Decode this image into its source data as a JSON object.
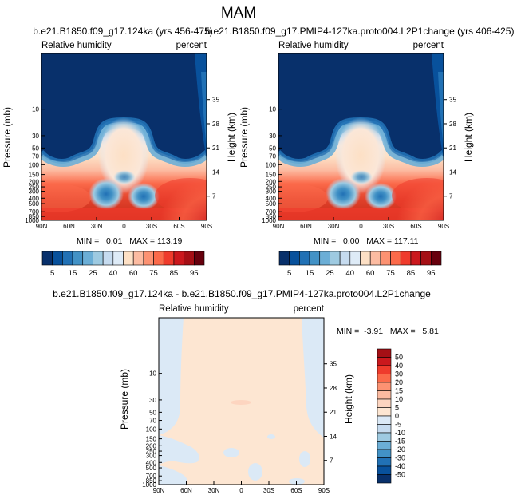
{
  "figure_title": "MAM",
  "chart_data": [
    {
      "type": "filled-contour",
      "title": "b.e21.B1850.f09_g17.124ka (yrs 456-475)",
      "left_string": "Relative humidity",
      "right_string": "percent",
      "xlabel": "",
      "ylabel": "Pressure (mb)",
      "ylabel_right": "Height (km)",
      "x_ticks": [
        "90N",
        "60N",
        "30N",
        "0",
        "30S",
        "60S",
        "90S"
      ],
      "y_ticks": [
        "10",
        "30",
        "50",
        "70",
        "100",
        "150",
        "200",
        "250",
        "300",
        "400",
        "500",
        "700",
        "850",
        "1000"
      ],
      "height_ticks": [
        "35",
        "28",
        "21",
        "14",
        "7"
      ],
      "stats": "MIN =   0.01   MAX = 113.19",
      "colorbar": {
        "orientation": "horizontal",
        "labels": [
          "5",
          "15",
          "25",
          "40",
          "60",
          "75",
          "85",
          "95"
        ],
        "colors": [
          "#08306b",
          "#08519c",
          "#2171b5",
          "#4292c6",
          "#6baed6",
          "#9ecae1",
          "#c6dbef",
          "#deebf7",
          "#fde0c5",
          "#fcbba1",
          "#fc9272",
          "#fb6a4a",
          "#ef3b2c",
          "#cb181d",
          "#a50f15",
          "#67000d"
        ]
      }
    },
    {
      "type": "filled-contour",
      "title": "b.e21.B1850.f09_g17.PMIP4-127ka.proto004.L2P1change (yrs 406-425)",
      "left_string": "Relative humidity",
      "right_string": "percent",
      "xlabel": "",
      "ylabel": "Pressure (mb)",
      "ylabel_right": "Height (km)",
      "x_ticks": [
        "90N",
        "60N",
        "30N",
        "0",
        "30S",
        "60S",
        "90S"
      ],
      "y_ticks": [
        "10",
        "30",
        "50",
        "70",
        "100",
        "150",
        "200",
        "250",
        "300",
        "400",
        "500",
        "700",
        "850",
        "1000"
      ],
      "height_ticks": [
        "35",
        "28",
        "21",
        "14",
        "7"
      ],
      "stats": "MIN =   0.00   MAX = 117.11",
      "colorbar": {
        "orientation": "horizontal",
        "labels": [
          "5",
          "15",
          "25",
          "40",
          "60",
          "75",
          "85",
          "95"
        ],
        "colors": [
          "#08306b",
          "#08519c",
          "#2171b5",
          "#4292c6",
          "#6baed6",
          "#9ecae1",
          "#c6dbef",
          "#deebf7",
          "#fde0c5",
          "#fcbba1",
          "#fc9272",
          "#fb6a4a",
          "#ef3b2c",
          "#cb181d",
          "#a50f15",
          "#67000d"
        ]
      }
    },
    {
      "type": "filled-contour",
      "title": "b.e21.B1850.f09_g17.124ka - b.e21.B1850.f09_g17.PMIP4-127ka.proto004.L2P1change",
      "left_string": "Relative humidity",
      "right_string": "percent",
      "xlabel": "",
      "ylabel": "Pressure (mb)",
      "ylabel_right": "Height (km)",
      "x_ticks": [
        "90N",
        "60N",
        "30N",
        "0",
        "30S",
        "60S",
        "90S"
      ],
      "y_ticks": [
        "10",
        "30",
        "50",
        "70",
        "100",
        "150",
        "200",
        "250",
        "300",
        "400",
        "500",
        "700",
        "850",
        "1000"
      ],
      "height_ticks": [
        "35",
        "28",
        "21",
        "14",
        "7"
      ],
      "stats": "MIN =  -3.91   MAX =   5.81",
      "colorbar": {
        "orientation": "vertical",
        "labels": [
          "50",
          "40",
          "30",
          "20",
          "15",
          "10",
          "5",
          "0",
          "-5",
          "-10",
          "-15",
          "-20",
          "-30",
          "-40",
          "-50"
        ],
        "colors": [
          "#a50f15",
          "#cb181d",
          "#ef3b2c",
          "#fb6a4a",
          "#fc9272",
          "#fcbba1",
          "#fdd5c0",
          "#fde6d2",
          "#dbe9f6",
          "#c6dbef",
          "#9ecae1",
          "#6baed6",
          "#4292c6",
          "#2171b5",
          "#08519c",
          "#08306b"
        ]
      }
    }
  ]
}
